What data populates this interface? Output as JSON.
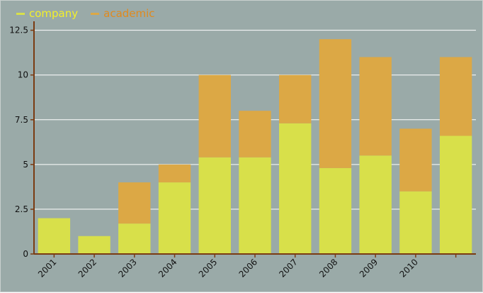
{
  "chart_data": {
    "type": "bar",
    "stacked": true,
    "categories": [
      "2001",
      "2002",
      "2003",
      "2004",
      "2005",
      "2006",
      "2007",
      "2008",
      "2009",
      "2010",
      ""
    ],
    "series": [
      {
        "name": "company",
        "color": "#d8e04a",
        "values": [
          2,
          1,
          1.7,
          4,
          5.4,
          5.4,
          7.3,
          4.8,
          5.5,
          3.5,
          6.6
        ]
      },
      {
        "name": "academic",
        "color": "#dca845",
        "values": [
          0,
          0,
          2.3,
          1,
          4.6,
          2.6,
          2.7,
          7.2,
          5.5,
          3.5,
          4.4
        ]
      }
    ],
    "y_ticks": [
      "0",
      "2.5",
      "5",
      "7.5",
      "10",
      "12.5"
    ],
    "ylim": [
      0,
      13
    ],
    "grid": true,
    "legend_position": "top-left",
    "colors": {
      "background": "#9aaaa8",
      "axis": "#7a3b12",
      "gridline": "#ffffff",
      "legend_company_text": "#f2ef2a",
      "legend_academic_text": "#e08a1e"
    }
  }
}
